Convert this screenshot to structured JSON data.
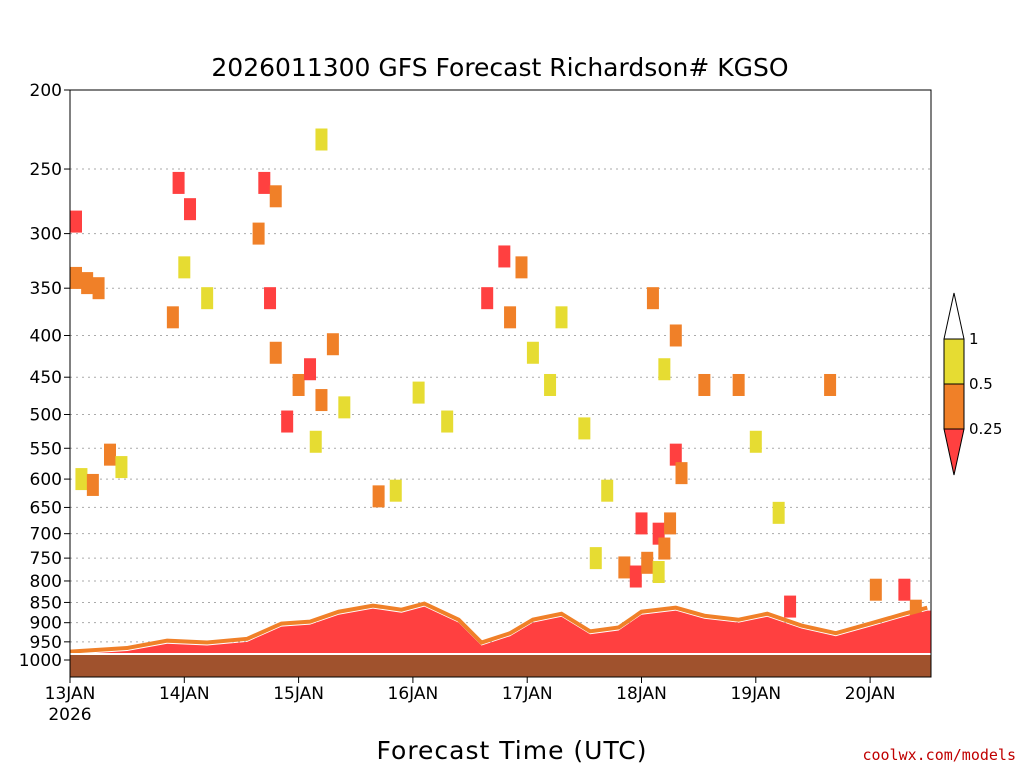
{
  "chart_data": {
    "type": "heatmap",
    "title": "2026011300 GFS Forecast Richardson# KGSO",
    "xlabel": "Forecast Time (UTC)",
    "ylabel": "",
    "y_scale": "log-pressure",
    "y_inverted": true,
    "ylim": [
      1000,
      200
    ],
    "y_ticks": [
      200,
      250,
      300,
      350,
      400,
      450,
      500,
      550,
      600,
      650,
      700,
      750,
      800,
      850,
      900,
      950,
      1000
    ],
    "x_ticks": [
      "13JAN",
      "14JAN",
      "15JAN",
      "16JAN",
      "17JAN",
      "18JAN",
      "19JAN",
      "20JAN"
    ],
    "x_year_label": "2026",
    "grid": "dotted horizontal at pressure ticks",
    "colorbar": {
      "ticks": [
        "1",
        "0.5",
        "0.25"
      ],
      "levels": [
        {
          "range": "< 0.25",
          "color": "#ff4040"
        },
        {
          "range": "0.25 - 0.5",
          "color": "#f08028"
        },
        {
          "range": "0.5 - 1",
          "color": "#e6dc32"
        },
        {
          "range": "> 1",
          "color": "#ffffff"
        }
      ]
    },
    "ground_color": "#a0522d",
    "cells": [
      {
        "day": 0.05,
        "p": 340,
        "v": 0.3
      },
      {
        "day": 0.15,
        "p": 345,
        "v": 0.3
      },
      {
        "day": 0.25,
        "p": 350,
        "v": 0.4
      },
      {
        "day": 0.05,
        "p": 290,
        "v": 0.2
      },
      {
        "day": 0.1,
        "p": 600,
        "v": 0.6
      },
      {
        "day": 0.2,
        "p": 610,
        "v": 0.3
      },
      {
        "day": 0.35,
        "p": 560,
        "v": 0.4
      },
      {
        "day": 0.45,
        "p": 580,
        "v": 0.6
      },
      {
        "day": 0.95,
        "p": 260,
        "v": 0.2
      },
      {
        "day": 1.05,
        "p": 280,
        "v": 0.2
      },
      {
        "day": 1.0,
        "p": 330,
        "v": 0.7
      },
      {
        "day": 0.9,
        "p": 380,
        "v": 0.3
      },
      {
        "day": 1.2,
        "p": 360,
        "v": 0.6
      },
      {
        "day": 1.7,
        "p": 260,
        "v": 0.2
      },
      {
        "day": 1.8,
        "p": 270,
        "v": 0.3
      },
      {
        "day": 1.65,
        "p": 300,
        "v": 0.3
      },
      {
        "day": 1.75,
        "p": 360,
        "v": 0.2
      },
      {
        "day": 1.8,
        "p": 420,
        "v": 0.3
      },
      {
        "day": 1.9,
        "p": 510,
        "v": 0.2
      },
      {
        "day": 2.0,
        "p": 460,
        "v": 0.3
      },
      {
        "day": 2.1,
        "p": 440,
        "v": 0.2
      },
      {
        "day": 2.2,
        "p": 480,
        "v": 0.3
      },
      {
        "day": 2.15,
        "p": 540,
        "v": 0.6
      },
      {
        "day": 2.3,
        "p": 410,
        "v": 0.4
      },
      {
        "day": 2.4,
        "p": 490,
        "v": 0.7
      },
      {
        "day": 2.2,
        "p": 230,
        "v": 0.6
      },
      {
        "day": 2.7,
        "p": 630,
        "v": 0.3
      },
      {
        "day": 2.85,
        "p": 620,
        "v": 0.6
      },
      {
        "day": 3.05,
        "p": 470,
        "v": 0.6
      },
      {
        "day": 3.3,
        "p": 510,
        "v": 0.7
      },
      {
        "day": 3.8,
        "p": 320,
        "v": 0.2
      },
      {
        "day": 3.95,
        "p": 330,
        "v": 0.3
      },
      {
        "day": 3.65,
        "p": 360,
        "v": 0.2
      },
      {
        "day": 3.85,
        "p": 380,
        "v": 0.3
      },
      {
        "day": 4.05,
        "p": 420,
        "v": 0.6
      },
      {
        "day": 4.2,
        "p": 460,
        "v": 0.7
      },
      {
        "day": 4.3,
        "p": 380,
        "v": 0.6
      },
      {
        "day": 4.5,
        "p": 520,
        "v": 0.6
      },
      {
        "day": 4.7,
        "p": 620,
        "v": 0.7
      },
      {
        "day": 4.6,
        "p": 750,
        "v": 0.6
      },
      {
        "day": 4.85,
        "p": 770,
        "v": 0.3
      },
      {
        "day": 4.95,
        "p": 790,
        "v": 0.2
      },
      {
        "day": 5.05,
        "p": 760,
        "v": 0.3
      },
      {
        "day": 5.15,
        "p": 780,
        "v": 0.6
      },
      {
        "day": 5.1,
        "p": 360,
        "v": 0.3
      },
      {
        "day": 5.2,
        "p": 440,
        "v": 0.6
      },
      {
        "day": 5.3,
        "p": 560,
        "v": 0.2
      },
      {
        "day": 5.35,
        "p": 590,
        "v": 0.3
      },
      {
        "day": 5.0,
        "p": 680,
        "v": 0.2
      },
      {
        "day": 5.15,
        "p": 700,
        "v": 0.2
      },
      {
        "day": 5.2,
        "p": 730,
        "v": 0.3
      },
      {
        "day": 5.25,
        "p": 680,
        "v": 0.3
      },
      {
        "day": 5.3,
        "p": 400,
        "v": 0.4
      },
      {
        "day": 5.55,
        "p": 460,
        "v": 0.3
      },
      {
        "day": 5.85,
        "p": 460,
        "v": 0.3
      },
      {
        "day": 6.65,
        "p": 460,
        "v": 0.3
      },
      {
        "day": 6.0,
        "p": 540,
        "v": 0.6
      },
      {
        "day": 6.2,
        "p": 660,
        "v": 0.7
      },
      {
        "day": 6.3,
        "p": 860,
        "v": 0.2
      },
      {
        "day": 7.05,
        "p": 820,
        "v": 0.3
      },
      {
        "day": 7.3,
        "p": 820,
        "v": 0.2
      },
      {
        "day": 7.4,
        "p": 870,
        "v": 0.3
      }
    ],
    "pbl_top": [
      {
        "day": 0.0,
        "p": 985
      },
      {
        "day": 0.5,
        "p": 975
      },
      {
        "day": 0.85,
        "p": 955
      },
      {
        "day": 1.2,
        "p": 960
      },
      {
        "day": 1.55,
        "p": 950
      },
      {
        "day": 1.85,
        "p": 910
      },
      {
        "day": 2.1,
        "p": 905
      },
      {
        "day": 2.35,
        "p": 880
      },
      {
        "day": 2.65,
        "p": 865
      },
      {
        "day": 2.9,
        "p": 875
      },
      {
        "day": 3.1,
        "p": 860
      },
      {
        "day": 3.4,
        "p": 900
      },
      {
        "day": 3.6,
        "p": 960
      },
      {
        "day": 3.85,
        "p": 935
      },
      {
        "day": 4.05,
        "p": 900
      },
      {
        "day": 4.3,
        "p": 885
      },
      {
        "day": 4.55,
        "p": 930
      },
      {
        "day": 4.8,
        "p": 920
      },
      {
        "day": 5.0,
        "p": 880
      },
      {
        "day": 5.3,
        "p": 870
      },
      {
        "day": 5.55,
        "p": 890
      },
      {
        "day": 5.85,
        "p": 900
      },
      {
        "day": 6.1,
        "p": 885
      },
      {
        "day": 6.4,
        "p": 915
      },
      {
        "day": 6.7,
        "p": 935
      },
      {
        "day": 7.0,
        "p": 910
      },
      {
        "day": 7.3,
        "p": 885
      },
      {
        "day": 7.5,
        "p": 870
      }
    ]
  },
  "credit": {
    "text": "coolwx.com/models",
    "color": "#c00000"
  }
}
